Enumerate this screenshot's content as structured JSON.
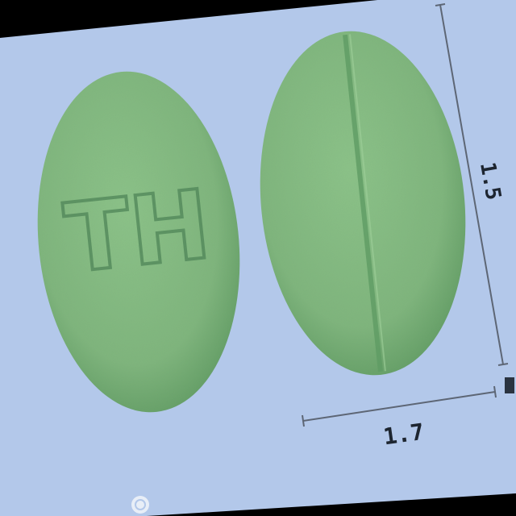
{
  "photo": {
    "background_color": "#b3c8ea",
    "border_color": "#000000",
    "pill_color": "#84bb80",
    "pill_shade_color": "#5f9c64",
    "imprint_color": "#4f8558",
    "scale_line_color": "#5d6675"
  },
  "tablets": [
    {
      "name": "tablet-front",
      "side": "front",
      "imprint": "TH"
    },
    {
      "name": "tablet-back",
      "side": "back",
      "bisect": true,
      "imprint": ""
    }
  ],
  "scale": {
    "vertical_label": "1.5",
    "horizontal_label": "1.7",
    "corner_label": ""
  },
  "watermark": {
    "text": "",
    "icon": "circle-logo-icon"
  }
}
